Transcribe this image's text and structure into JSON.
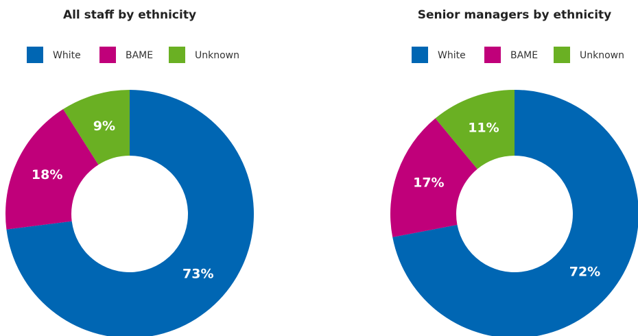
{
  "chart_data": [
    {
      "type": "pie",
      "title": "All staff by ethnicity",
      "categories": [
        "White",
        "BAME",
        "Unknown"
      ],
      "values": [
        73,
        18,
        9
      ],
      "value_labels": [
        "73%",
        "18%",
        "9%"
      ],
      "colors": [
        "#0066b3",
        "#c0007a",
        "#6ab023"
      ]
    },
    {
      "type": "pie",
      "title": "Senior managers by ethnicity",
      "categories": [
        "White",
        "BAME",
        "Unknown"
      ],
      "values": [
        72,
        17,
        11
      ],
      "value_labels": [
        "72%",
        "17%",
        "11%"
      ],
      "colors": [
        "#0066b3",
        "#c0007a",
        "#6ab023"
      ]
    }
  ]
}
